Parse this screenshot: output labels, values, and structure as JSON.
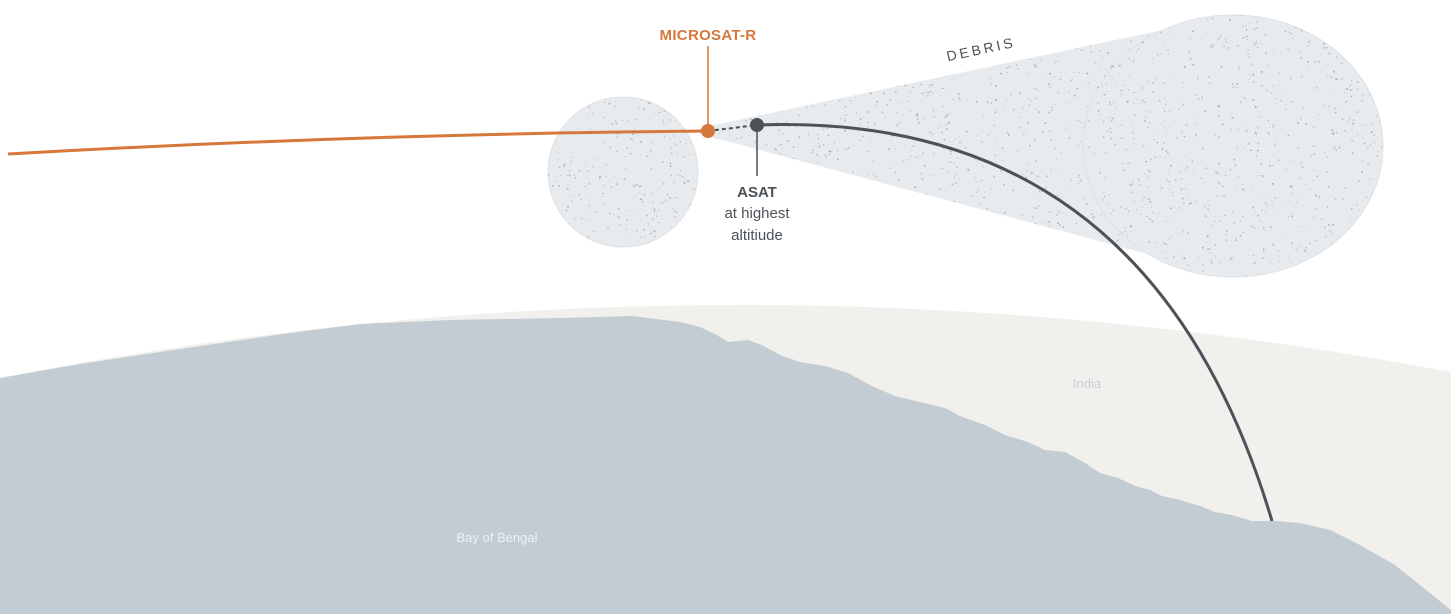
{
  "colors": {
    "background": "#ffffff",
    "land": "#f2f0ec",
    "water": "#c3ccd3",
    "satellite": "#d6773c",
    "missile": "#4b5258",
    "debris_fill": "#e8ebee",
    "debris_dot": "#9ea7ae",
    "water_label": "#eef1f3",
    "land_label": "#c9d0d6"
  },
  "labels": {
    "satellite": "MICROSAT-R",
    "asat_title": "ASAT",
    "asat_line1": "at highest",
    "asat_line2": "altitiude",
    "debris": "DEBRIS",
    "water": "Bay of Bengal",
    "land": "India"
  }
}
